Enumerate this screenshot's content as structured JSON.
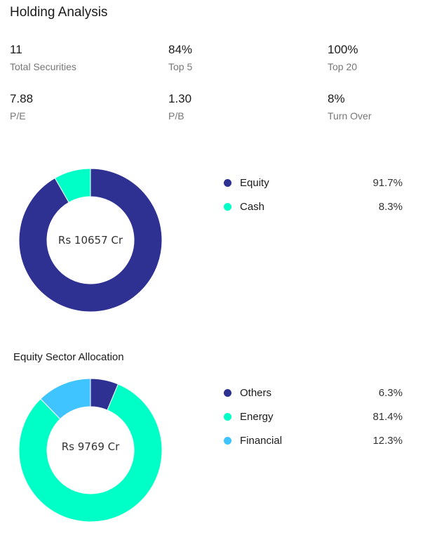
{
  "title": "Holding Analysis",
  "stats": [
    {
      "value": "11",
      "label": "Total Securities"
    },
    {
      "value": "84%",
      "label": "Top 5"
    },
    {
      "value": "100%",
      "label": "Top 20"
    },
    {
      "value": "7.88",
      "label": "P/E"
    },
    {
      "value": "1.30",
      "label": "P/B"
    },
    {
      "value": "8%",
      "label": "Turn Over"
    }
  ],
  "colors": {
    "navy": "#2e3192",
    "teal": "#00ffc6",
    "sky": "#40c4ff"
  },
  "chart_data": [
    {
      "type": "pie",
      "title": "",
      "center_label": "Rs 10657 Cr",
      "categories": [
        "Equity",
        "Cash"
      ],
      "values": [
        91.7,
        8.3
      ],
      "labels": [
        "91.7%",
        "8.3%"
      ],
      "colors": [
        "#2e3192",
        "#00ffc6"
      ],
      "legend": "right"
    },
    {
      "type": "pie",
      "title": "Equity Sector Allocation",
      "center_label": "Rs 9769 Cr",
      "categories": [
        "Others",
        "Energy",
        "Financial"
      ],
      "values": [
        6.3,
        81.4,
        12.3
      ],
      "labels": [
        "6.3%",
        "81.4%",
        "12.3%"
      ],
      "colors": [
        "#2e3192",
        "#00ffc6",
        "#40c4ff"
      ],
      "legend": "right"
    }
  ]
}
